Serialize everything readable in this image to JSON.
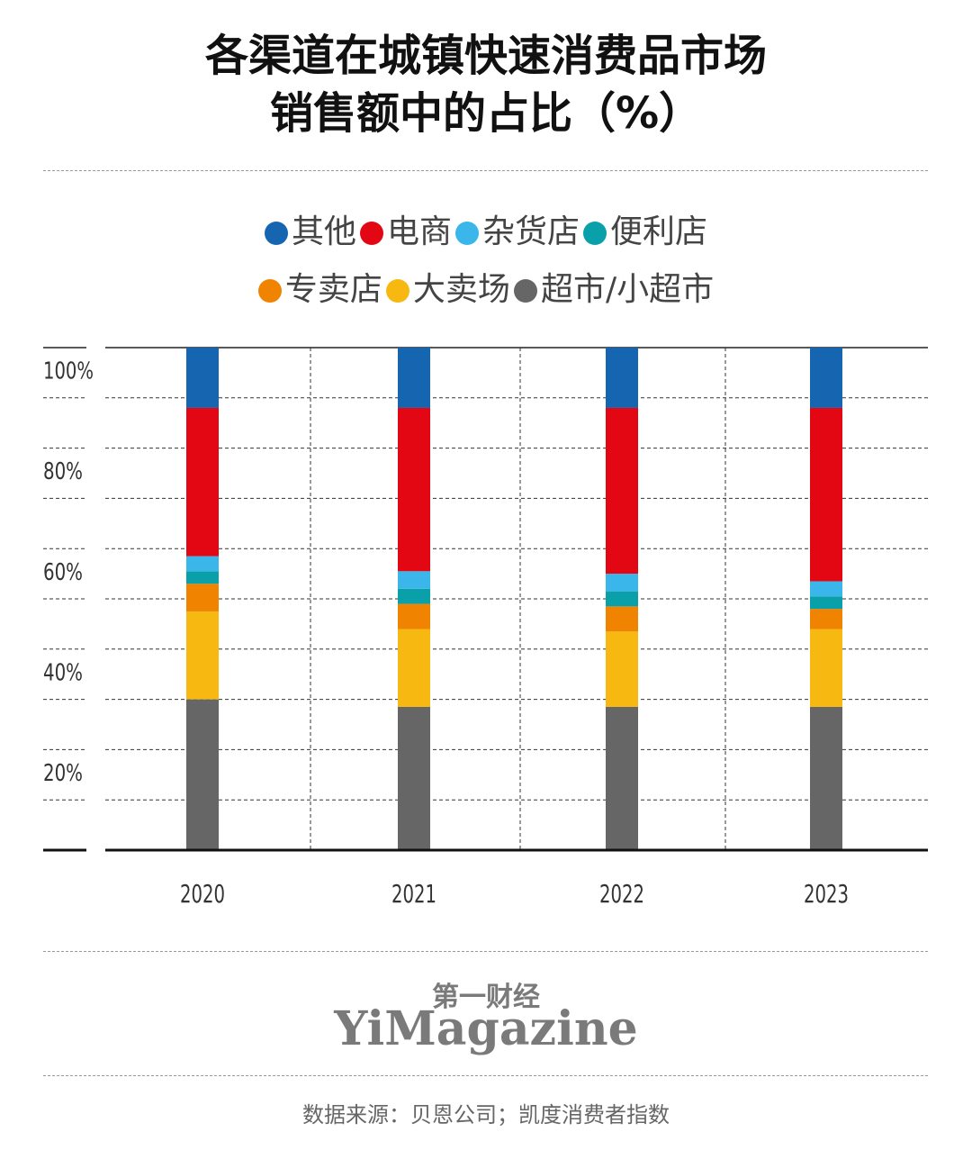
{
  "title_line1": "各渠道在城镇快速消费品市场",
  "title_line2": "销售额中的占比（%）",
  "legend_row1": [
    {
      "label": "其他",
      "color": "#1565b0"
    },
    {
      "label": "电商",
      "color": "#e30613"
    },
    {
      "label": "杂货店",
      "color": "#3ab6ea"
    },
    {
      "label": "便利店",
      "color": "#0aa0aa"
    }
  ],
  "legend_row2": [
    {
      "label": "专卖店",
      "color": "#f08300"
    },
    {
      "label": "大卖场",
      "color": "#f8b812"
    },
    {
      "label": "超市/小超市",
      "color": "#666666"
    }
  ],
  "brand_cn": "第一财经",
  "brand_en": "YiMagazine",
  "source": "数据来源：贝恩公司；凯度消费者指数",
  "chart_data": {
    "type": "bar",
    "stacked": true,
    "categories": [
      "2020",
      "2021",
      "2022",
      "2023"
    ],
    "y_tick_labels": [
      "100%",
      "80%",
      "60%",
      "40%",
      "20%"
    ],
    "y_ticks": [
      100,
      80,
      60,
      40,
      20
    ],
    "ylim": [
      0,
      100
    ],
    "grid": true,
    "series": [
      {
        "name": "超市/小超市",
        "color": "#666666",
        "values": [
          30,
          28.5,
          28.5,
          28.5
        ]
      },
      {
        "name": "大卖场",
        "color": "#f8b812",
        "values": [
          17.5,
          15.5,
          15,
          15.5
        ]
      },
      {
        "name": "专卖店",
        "color": "#f08300",
        "values": [
          5.5,
          5,
          5,
          4
        ]
      },
      {
        "name": "便利店",
        "color": "#0aa0aa",
        "values": [
          2.5,
          3,
          3,
          2.5
        ]
      },
      {
        "name": "杂货店",
        "color": "#3ab6ea",
        "values": [
          3,
          3.5,
          3.5,
          3
        ]
      },
      {
        "name": "电商",
        "color": "#e30613",
        "values": [
          29.5,
          32.5,
          33,
          34.5
        ]
      },
      {
        "name": "其他",
        "color": "#1565b0",
        "values": [
          12,
          12,
          12,
          12
        ]
      }
    ]
  }
}
